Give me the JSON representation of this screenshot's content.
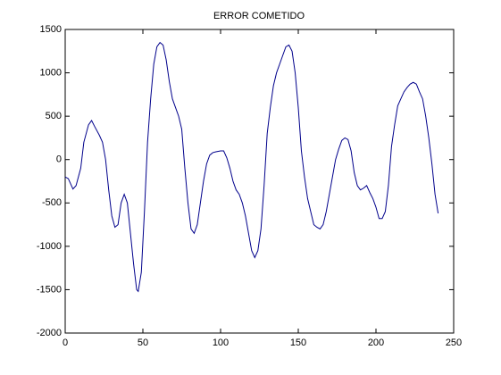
{
  "chart_data": {
    "type": "line",
    "title": "ERROR COMETIDO",
    "x": [
      0,
      2,
      5,
      7,
      10,
      12,
      15,
      17,
      19,
      22,
      24,
      26,
      28,
      30,
      32,
      34,
      36,
      38,
      40,
      42,
      44,
      46,
      47,
      49,
      51,
      53,
      55,
      57,
      59,
      61,
      63,
      65,
      67,
      69,
      71,
      73,
      75,
      77,
      79,
      81,
      83,
      85,
      87,
      89,
      91,
      93,
      95,
      97,
      100,
      102,
      104,
      106,
      108,
      110,
      112,
      114,
      116,
      118,
      120,
      122,
      124,
      126,
      128,
      130,
      132,
      134,
      136,
      138,
      140,
      142,
      144,
      146,
      148,
      150,
      152,
      154,
      156,
      158,
      160,
      162,
      164,
      166,
      168,
      170,
      172,
      174,
      176,
      178,
      180,
      182,
      184,
      186,
      188,
      190,
      192,
      194,
      196,
      198,
      200,
      202,
      204,
      206,
      208,
      210,
      212,
      214,
      216,
      218,
      220,
      222,
      224,
      226,
      228,
      230,
      232,
      234,
      236,
      238,
      240
    ],
    "values": [
      -200,
      -220,
      -340,
      -300,
      -100,
      200,
      400,
      450,
      380,
      280,
      200,
      0,
      -350,
      -650,
      -780,
      -750,
      -500,
      -400,
      -500,
      -850,
      -1200,
      -1500,
      -1520,
      -1300,
      -600,
      200,
      700,
      1100,
      1300,
      1350,
      1320,
      1150,
      900,
      700,
      600,
      500,
      350,
      -100,
      -500,
      -800,
      -850,
      -750,
      -500,
      -250,
      -50,
      50,
      80,
      90,
      100,
      100,
      20,
      -100,
      -250,
      -350,
      -400,
      -500,
      -650,
      -850,
      -1050,
      -1130,
      -1050,
      -800,
      -300,
      300,
      600,
      850,
      1000,
      1100,
      1200,
      1300,
      1320,
      1250,
      1000,
      600,
      100,
      -200,
      -450,
      -600,
      -750,
      -780,
      -800,
      -750,
      -600,
      -400,
      -200,
      0,
      120,
      220,
      250,
      230,
      100,
      -150,
      -300,
      -350,
      -330,
      -300,
      -380,
      -450,
      -550,
      -680,
      -680,
      -600,
      -300,
      150,
      400,
      620,
      700,
      780,
      830,
      870,
      890,
      870,
      780,
      700,
      500,
      250,
      -50,
      -400,
      -620
    ],
    "color": "#00008b",
    "xlim": [
      0,
      250
    ],
    "xticks": [
      0,
      50,
      100,
      150,
      200,
      250
    ],
    "ylim": [
      -2000,
      1500
    ],
    "yticks": [
      -2000,
      -1500,
      -1000,
      -500,
      0,
      500,
      1000,
      1500
    ]
  }
}
